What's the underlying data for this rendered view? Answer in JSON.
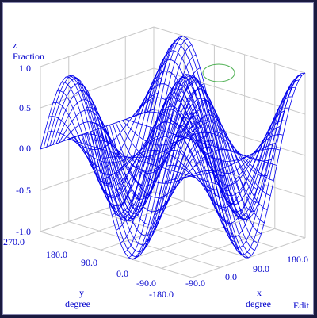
{
  "edit_label": "Edit",
  "colors": {
    "surface": "#0000ee",
    "labels": "#0000cc",
    "grid": "#c8c8c8",
    "frame_bg": "#ffffff",
    "window_bg": "#1a1a40",
    "cursor_ring": "#4caf50"
  },
  "chart_data": {
    "type": "surface",
    "title": "",
    "function": "z = cos(x) * cos(y)",
    "x": {
      "label": "x",
      "unit": "degree",
      "range": [
        -180,
        180
      ],
      "ticks": [
        "-90.0",
        "0.0",
        "90.0",
        "180.0"
      ]
    },
    "y": {
      "label": "y",
      "unit": "degree",
      "range": [
        -180,
        270
      ],
      "ticks": [
        "-180.0",
        "-90.0",
        "0.0",
        "90.0",
        "180.0",
        "270.0"
      ]
    },
    "z": {
      "label": "z",
      "unit": "Fraction",
      "range": [
        -1,
        1
      ],
      "ticks": [
        "1.0",
        "0.5",
        "0.0",
        "-0.5",
        "-1.0"
      ]
    },
    "mesh": "wireframe",
    "grid": true
  }
}
